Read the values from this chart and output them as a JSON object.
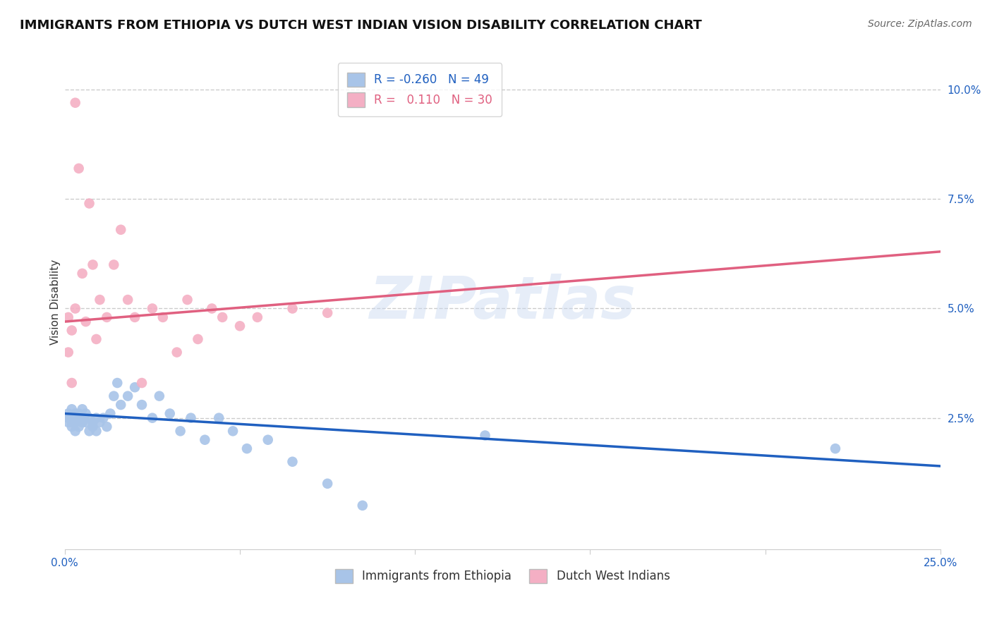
{
  "title": "IMMIGRANTS FROM ETHIOPIA VS DUTCH WEST INDIAN VISION DISABILITY CORRELATION CHART",
  "source": "Source: ZipAtlas.com",
  "xlabel": "",
  "ylabel": "Vision Disability",
  "xlim": [
    0.0,
    0.25
  ],
  "ylim": [
    -0.005,
    0.108
  ],
  "xticks": [
    0.0,
    0.05,
    0.1,
    0.15,
    0.2,
    0.25
  ],
  "xticklabels": [
    "0.0%",
    "",
    "",
    "",
    "",
    "25.0%"
  ],
  "yticks": [
    0.025,
    0.05,
    0.075,
    0.1
  ],
  "yticklabels": [
    "2.5%",
    "5.0%",
    "7.5%",
    "10.0%"
  ],
  "blue_R": -0.26,
  "blue_N": 49,
  "pink_R": 0.11,
  "pink_N": 30,
  "blue_label": "Immigrants from Ethiopia",
  "pink_label": "Dutch West Indians",
  "blue_color": "#a8c4e8",
  "pink_color": "#f4afc4",
  "blue_line_color": "#2060c0",
  "pink_line_color": "#e06080",
  "blue_x": [
    0.001,
    0.001,
    0.001,
    0.002,
    0.002,
    0.002,
    0.002,
    0.003,
    0.003,
    0.003,
    0.004,
    0.004,
    0.004,
    0.005,
    0.005,
    0.005,
    0.006,
    0.006,
    0.007,
    0.007,
    0.008,
    0.008,
    0.009,
    0.009,
    0.01,
    0.011,
    0.012,
    0.013,
    0.014,
    0.015,
    0.016,
    0.018,
    0.02,
    0.022,
    0.025,
    0.027,
    0.03,
    0.033,
    0.036,
    0.04,
    0.044,
    0.048,
    0.052,
    0.058,
    0.065,
    0.075,
    0.085,
    0.12,
    0.22
  ],
  "blue_y": [
    0.026,
    0.025,
    0.024,
    0.027,
    0.025,
    0.024,
    0.023,
    0.026,
    0.024,
    0.022,
    0.026,
    0.025,
    0.023,
    0.027,
    0.025,
    0.024,
    0.026,
    0.024,
    0.025,
    0.022,
    0.024,
    0.023,
    0.025,
    0.022,
    0.024,
    0.025,
    0.023,
    0.026,
    0.03,
    0.033,
    0.028,
    0.03,
    0.032,
    0.028,
    0.025,
    0.03,
    0.026,
    0.022,
    0.025,
    0.02,
    0.025,
    0.022,
    0.018,
    0.02,
    0.015,
    0.01,
    0.005,
    0.021,
    0.018
  ],
  "pink_x": [
    0.001,
    0.001,
    0.002,
    0.002,
    0.003,
    0.003,
    0.004,
    0.005,
    0.006,
    0.007,
    0.008,
    0.009,
    0.01,
    0.012,
    0.014,
    0.016,
    0.018,
    0.02,
    0.022,
    0.025,
    0.028,
    0.032,
    0.035,
    0.038,
    0.042,
    0.045,
    0.05,
    0.055,
    0.065,
    0.075
  ],
  "pink_y": [
    0.048,
    0.04,
    0.045,
    0.033,
    0.097,
    0.05,
    0.082,
    0.058,
    0.047,
    0.074,
    0.06,
    0.043,
    0.052,
    0.048,
    0.06,
    0.068,
    0.052,
    0.048,
    0.033,
    0.05,
    0.048,
    0.04,
    0.052,
    0.043,
    0.05,
    0.048,
    0.046,
    0.048,
    0.05,
    0.049
  ],
  "pink_line_start_y": 0.047,
  "pink_line_end_y": 0.063,
  "blue_line_start_y": 0.026,
  "blue_line_end_y": 0.014,
  "watermark": "ZIPatlas",
  "background_color": "#ffffff",
  "grid_color": "#cccccc",
  "title_fontsize": 13,
  "axis_fontsize": 11,
  "tick_fontsize": 11,
  "legend_fontsize": 12
}
